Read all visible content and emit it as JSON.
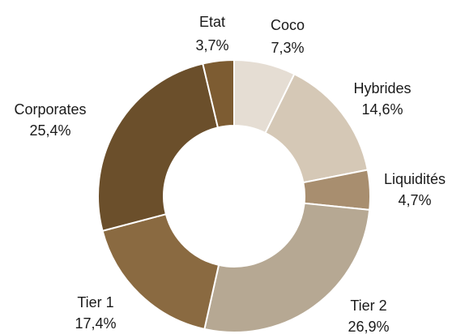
{
  "chart_data": {
    "type": "donut",
    "categories": [
      "Coco",
      "Hybrides",
      "Liquidités",
      "Tier 2",
      "Tier 1",
      "Corporates",
      "Etat"
    ],
    "values": [
      7.3,
      14.6,
      4.7,
      26.9,
      17.4,
      25.4,
      3.7
    ],
    "value_labels": [
      "7,3%",
      "14,6%",
      "4,7%",
      "26,9%",
      "17,4%",
      "25,4%",
      "3,7%"
    ],
    "colors": [
      "#e5ddd3",
      "#d5c8b6",
      "#a88e6f",
      "#b6a893",
      "#8a6a41",
      "#6b4f2b",
      "#7d5c32"
    ]
  }
}
